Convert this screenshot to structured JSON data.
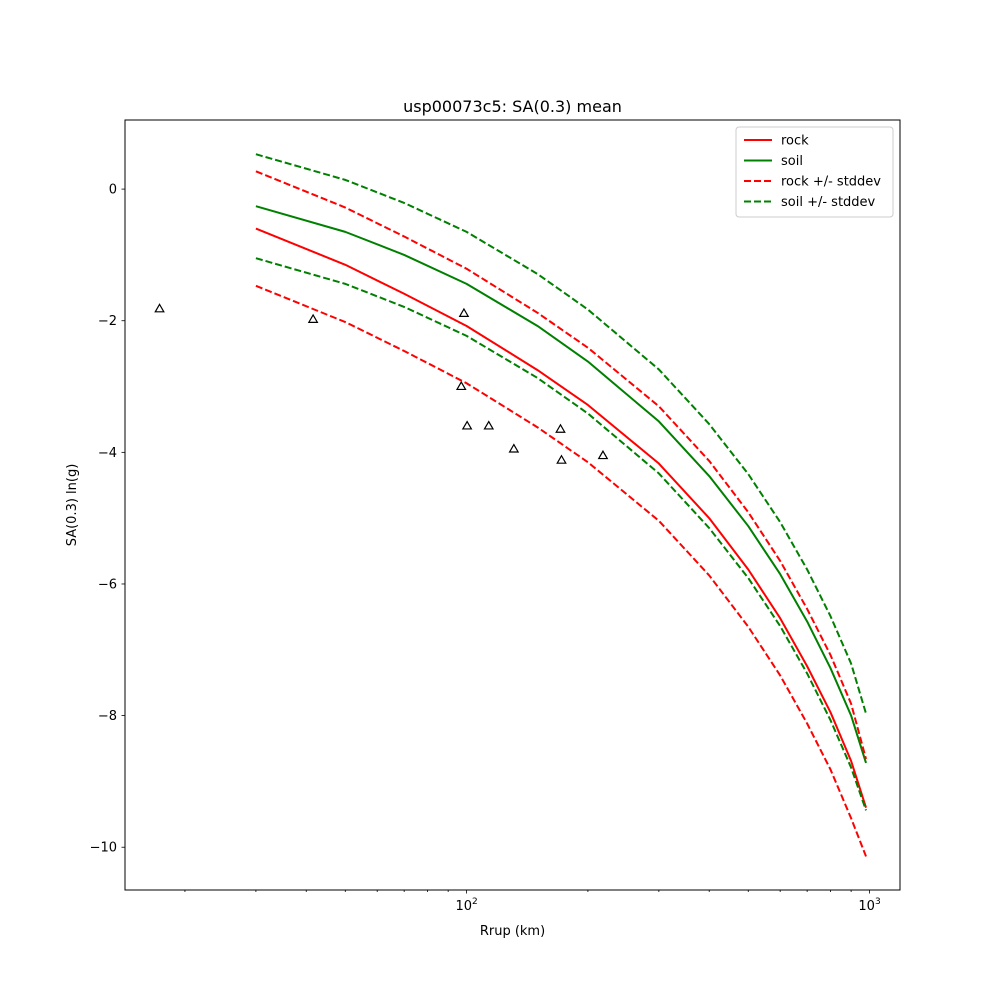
{
  "chart_data": {
    "type": "line",
    "title": "usp00073c5: SA(0.3) mean",
    "xlabel": "Rrup (km)",
    "ylabel": "SA(0.3) ln(g)",
    "xscale": "log",
    "xlim": [
      14.2,
      1190
    ],
    "ylim": [
      -10.65,
      1.05
    ],
    "grid": false,
    "legend_placement": "top-right",
    "x_ticks": [
      {
        "value": 100,
        "base": "10",
        "exp": "2"
      },
      {
        "value": 1000,
        "base": "10",
        "exp": "3"
      }
    ],
    "x_minor_ticks": [
      20,
      30,
      40,
      50,
      60,
      70,
      80,
      90,
      200,
      300,
      400,
      500,
      600,
      700,
      800,
      900
    ],
    "y_ticks": [
      {
        "value": 0,
        "label": "0"
      },
      {
        "value": -2,
        "label": "−2"
      },
      {
        "value": -4,
        "label": "−4"
      },
      {
        "value": -6,
        "label": "−6"
      },
      {
        "value": -8,
        "label": "−8"
      },
      {
        "value": -10,
        "label": "−10"
      }
    ],
    "series": [
      {
        "name": "rock",
        "color": "#ff0000",
        "style": "solid",
        "x": [
          30,
          50,
          70,
          100,
          150,
          200,
          300,
          400,
          500,
          600,
          700,
          800,
          900,
          980
        ],
        "y": [
          -0.6,
          -1.15,
          -1.59,
          -2.08,
          -2.75,
          -3.28,
          -4.17,
          -5.0,
          -5.78,
          -6.52,
          -7.25,
          -7.95,
          -8.69,
          -9.4
        ]
      },
      {
        "name": "soil",
        "color": "#008000",
        "style": "solid",
        "x": [
          30,
          50,
          70,
          100,
          150,
          200,
          300,
          400,
          500,
          600,
          700,
          800,
          900,
          980
        ],
        "y": [
          -0.26,
          -0.65,
          -1.0,
          -1.44,
          -2.08,
          -2.62,
          -3.53,
          -4.36,
          -5.12,
          -5.85,
          -6.57,
          -7.28,
          -8.0,
          -8.72
        ]
      },
      {
        "name": "rock +/- stddev",
        "color": "#ff0000",
        "style": "dashed",
        "x": [
          30,
          50,
          70,
          100,
          150,
          200,
          300,
          400,
          500,
          600,
          700,
          800,
          900,
          980
        ],
        "y": [
          0.27,
          -0.28,
          -0.72,
          -1.21,
          -1.88,
          -2.41,
          -3.3,
          -4.13,
          -4.91,
          -5.65,
          -6.38,
          -7.08,
          -7.82,
          -8.66
        ]
      },
      {
        "color": "#ff0000",
        "style": "dashed",
        "x": [
          30,
          50,
          70,
          100,
          150,
          200,
          300,
          400,
          500,
          600,
          700,
          800,
          900,
          980
        ],
        "y": [
          -1.47,
          -2.02,
          -2.46,
          -2.95,
          -3.62,
          -4.15,
          -5.04,
          -5.87,
          -6.65,
          -7.39,
          -8.12,
          -8.82,
          -9.56,
          -10.14
        ]
      },
      {
        "name": "soil +/- stddev",
        "color": "#008000",
        "style": "dashed",
        "x": [
          30,
          50,
          70,
          100,
          150,
          200,
          300,
          400,
          500,
          600,
          700,
          800,
          900,
          980
        ],
        "y": [
          0.53,
          0.14,
          -0.21,
          -0.65,
          -1.29,
          -1.83,
          -2.74,
          -3.57,
          -4.33,
          -5.06,
          -5.78,
          -6.49,
          -7.21,
          -7.97
        ]
      },
      {
        "color": "#008000",
        "style": "dashed",
        "x": [
          30,
          50,
          70,
          100,
          150,
          200,
          300,
          400,
          500,
          600,
          700,
          800,
          900,
          980
        ],
        "y": [
          -1.05,
          -1.44,
          -1.79,
          -2.23,
          -2.87,
          -3.41,
          -4.32,
          -5.15,
          -5.91,
          -6.64,
          -7.36,
          -8.07,
          -8.79,
          -9.44
        ]
      }
    ],
    "observations": {
      "marker": "triangle-open",
      "color": "#000000",
      "points": [
        {
          "x": 17.3,
          "y": -1.82
        },
        {
          "x": 41.6,
          "y": -1.98
        },
        {
          "x": 98.5,
          "y": -1.89
        },
        {
          "x": 97.0,
          "y": -3.0
        },
        {
          "x": 100.3,
          "y": -3.6
        },
        {
          "x": 113.5,
          "y": -3.6
        },
        {
          "x": 131.0,
          "y": -3.95
        },
        {
          "x": 171.0,
          "y": -3.65
        },
        {
          "x": 172.0,
          "y": -4.12
        },
        {
          "x": 218.0,
          "y": -4.05
        }
      ]
    },
    "legend": [
      {
        "label": "rock",
        "color": "#ff0000",
        "style": "solid"
      },
      {
        "label": "soil",
        "color": "#008000",
        "style": "solid"
      },
      {
        "label": "rock +/- stddev",
        "color": "#ff0000",
        "style": "dashed"
      },
      {
        "label": "soil +/- stddev",
        "color": "#008000",
        "style": "dashed"
      }
    ]
  }
}
